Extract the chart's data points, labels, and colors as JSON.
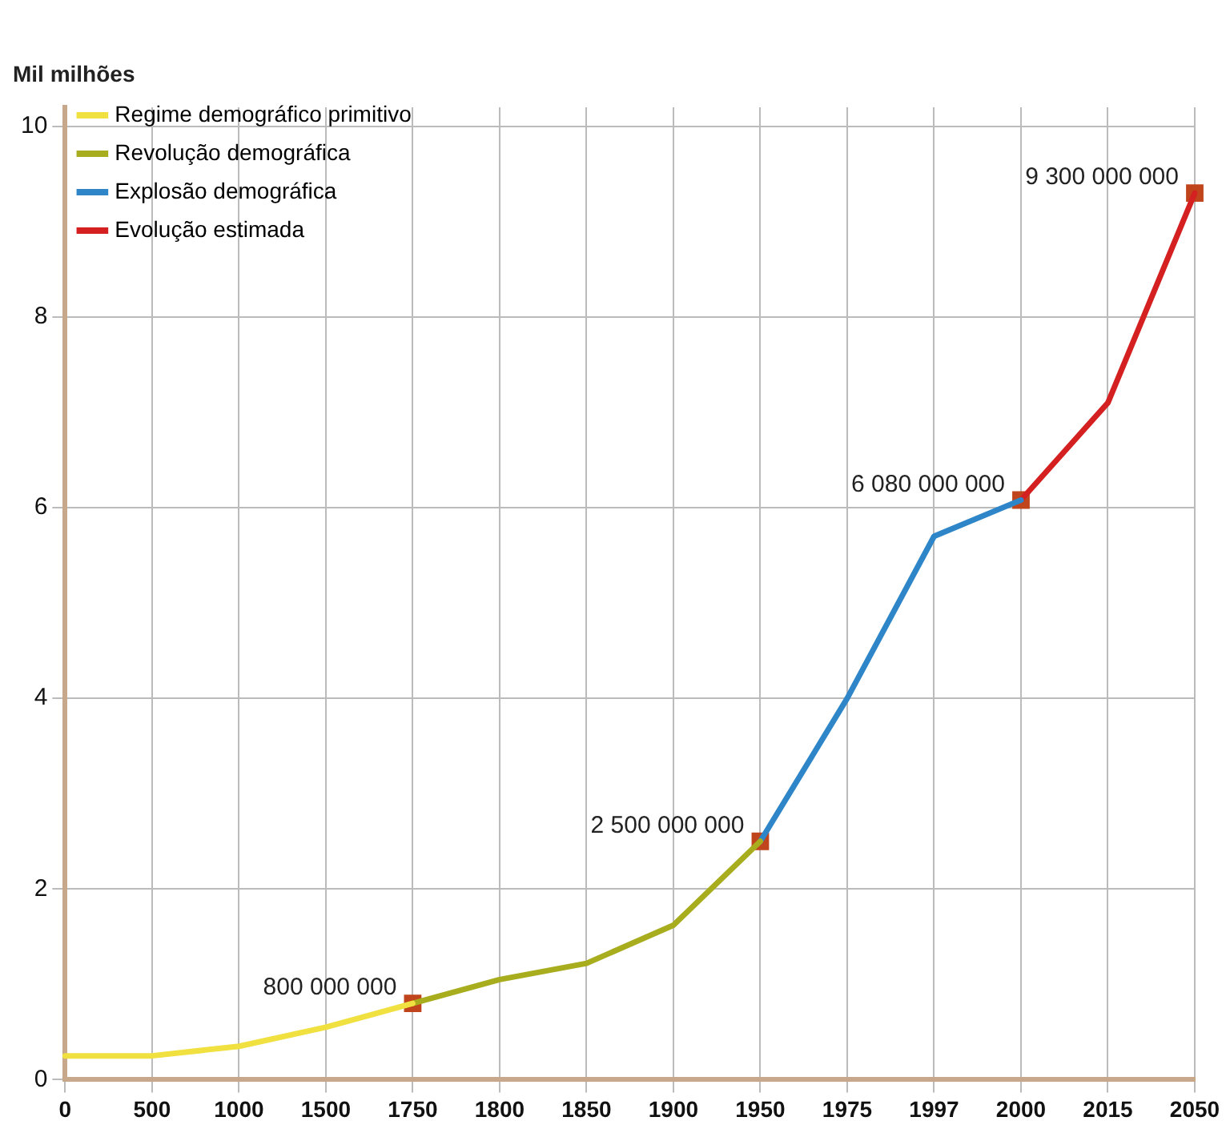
{
  "chart_data": {
    "type": "line",
    "ylabel": "Mil milhões",
    "categories": [
      "0",
      "500",
      "1000",
      "1500",
      "1750",
      "1800",
      "1850",
      "1900",
      "1950",
      "1975",
      "1997",
      "2000",
      "2015",
      "2050"
    ],
    "series": [
      {
        "name": "Regime demográfico primitivo",
        "color": "#f0e040",
        "values": [
          0.25,
          0.25,
          0.35,
          0.55,
          0.8,
          null,
          null,
          null,
          null,
          null,
          null,
          null,
          null,
          null
        ]
      },
      {
        "name": "Revolução demográfica",
        "color": "#a8ad1e",
        "values": [
          null,
          null,
          null,
          null,
          0.8,
          1.05,
          1.22,
          1.62,
          2.5,
          null,
          null,
          null,
          null,
          null
        ]
      },
      {
        "name": "Explosão demográfica",
        "color": "#2e86c8",
        "values": [
          null,
          null,
          null,
          null,
          null,
          null,
          null,
          null,
          2.5,
          4.0,
          5.7,
          6.08,
          null,
          null
        ]
      },
      {
        "name": "Evolução estimada",
        "color": "#d42020",
        "values": [
          null,
          null,
          null,
          null,
          null,
          null,
          null,
          null,
          null,
          null,
          null,
          6.08,
          7.1,
          9.3
        ]
      },
      {
        "type": "scatter",
        "marker": "square",
        "color": "#c0451c",
        "values": [
          null,
          null,
          null,
          null,
          0.8,
          null,
          null,
          null,
          2.5,
          null,
          null,
          6.08,
          null,
          9.3
        ]
      }
    ],
    "annotations": [
      {
        "text": "800 000 000",
        "x": "1750",
        "y": 0.8
      },
      {
        "text": "2 500 000 000",
        "x": "1950",
        "y": 2.5
      },
      {
        "text": "6 080 000 000",
        "x": "2000",
        "y": 6.08
      },
      {
        "text": "9 300 000 000",
        "x": "2050",
        "y": 9.3
      }
    ],
    "ylim": [
      0,
      10.2
    ],
    "yticks": [
      0,
      2,
      4,
      6,
      8,
      10
    ],
    "grid": true,
    "legend": "top left",
    "marker": "none",
    "line_style": "solid"
  }
}
